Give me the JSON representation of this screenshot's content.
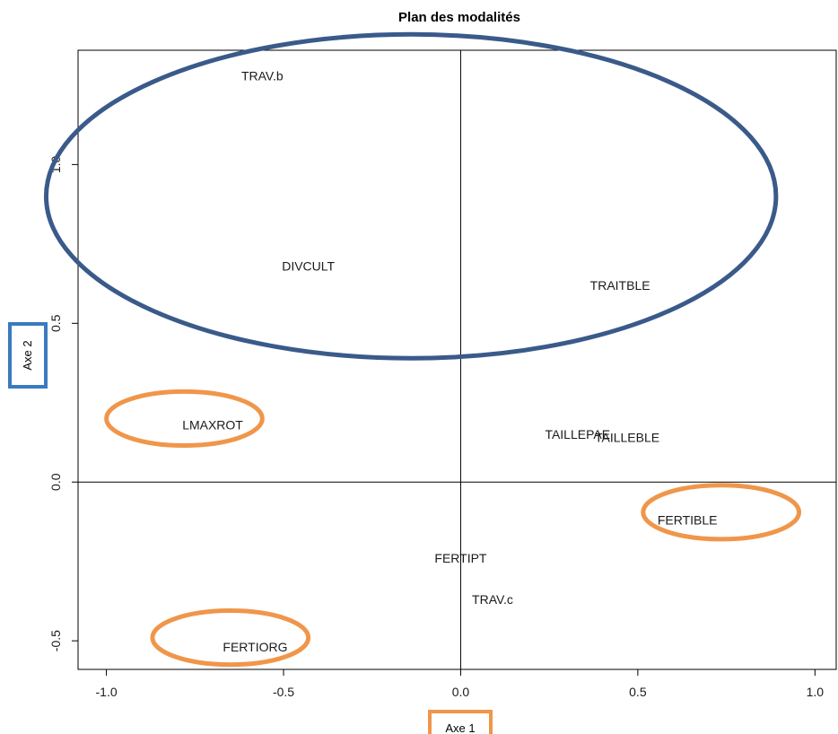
{
  "chart_data": {
    "type": "scatter",
    "title": "Plan des modalités",
    "xlabel": "Axe 1",
    "ylabel": "Axe 2",
    "xlim": [
      -1.08,
      1.06
    ],
    "ylim": [
      -0.59,
      1.36
    ],
    "x_ticks": [
      -1.0,
      -0.5,
      0.0,
      0.5,
      1.0
    ],
    "x_tick_labels": [
      "-1.0",
      "-0.5",
      "0.0",
      "0.5",
      "1.0"
    ],
    "y_ticks": [
      -0.5,
      0.0,
      0.5,
      1.0
    ],
    "y_tick_labels": [
      "-0.5",
      "0.0",
      "0.5",
      "1.0"
    ],
    "reference_lines": {
      "x": 0,
      "y": 0
    },
    "points": [
      {
        "label": "TRAV.b",
        "x": -0.56,
        "y": 1.28
      },
      {
        "label": "DIVCULT",
        "x": -0.43,
        "y": 0.68
      },
      {
        "label": "TRAITBLE",
        "x": 0.45,
        "y": 0.62
      },
      {
        "label": "LMAXROT",
        "x": -0.7,
        "y": 0.18
      },
      {
        "label": "TAILLEPAE",
        "x": 0.33,
        "y": 0.15
      },
      {
        "label": "TAILLEBLE",
        "x": 0.47,
        "y": 0.14
      },
      {
        "label": "FERTIBLE",
        "x": 0.64,
        "y": -0.12
      },
      {
        "label": "FERTIPT",
        "x": 0.0,
        "y": -0.24
      },
      {
        "label": "TRAV.c",
        "x": 0.09,
        "y": -0.37
      },
      {
        "label": "FERTIORG",
        "x": -0.58,
        "y": -0.52
      }
    ],
    "highlights": [
      {
        "shape": "ellipse",
        "color": "#3a5a8a",
        "cx": -0.14,
        "cy": 0.9,
        "rx": 1.03,
        "ry": 0.51
      },
      {
        "shape": "ellipse",
        "color": "#f0964a",
        "cx": -0.78,
        "cy": 0.2,
        "rx": 0.22,
        "ry": 0.085
      },
      {
        "shape": "ellipse",
        "color": "#f0964a",
        "cx": 0.735,
        "cy": -0.095,
        "rx": 0.22,
        "ry": 0.085
      },
      {
        "shape": "ellipse",
        "color": "#f0964a",
        "cx": -0.65,
        "cy": -0.49,
        "rx": 0.22,
        "ry": 0.085
      }
    ],
    "axis_title_boxes": {
      "x_color": "#f0964a",
      "y_color": "#3a7ac0"
    },
    "grid": false
  }
}
